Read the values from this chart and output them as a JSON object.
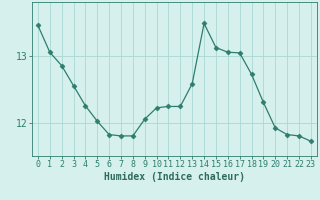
{
  "x": [
    0,
    1,
    2,
    3,
    4,
    5,
    6,
    7,
    8,
    9,
    10,
    11,
    12,
    13,
    14,
    15,
    16,
    17,
    18,
    19,
    20,
    21,
    22,
    23
  ],
  "y": [
    13.45,
    13.05,
    12.85,
    12.55,
    12.25,
    12.02,
    11.82,
    11.8,
    11.8,
    12.05,
    12.22,
    12.24,
    12.24,
    12.58,
    13.48,
    13.12,
    13.05,
    13.04,
    12.72,
    12.3,
    11.92,
    11.82,
    11.8,
    11.72
  ],
  "line_color": "#2e7d6e",
  "marker": "D",
  "marker_size": 2.5,
  "bg_color": "#d6f0ed",
  "grid_color": "#aad8d2",
  "tick_color": "#2e7d6e",
  "xlabel": "Humidex (Indice chaleur)",
  "yticks": [
    12,
    13
  ],
  "ylim": [
    11.5,
    13.8
  ],
  "xlim": [
    -0.5,
    23.5
  ],
  "font_color": "#2e6b5e",
  "xlabel_fontsize": 7,
  "tick_fontsize": 6,
  "ytick_fontsize": 7,
  "linewidth": 0.9
}
